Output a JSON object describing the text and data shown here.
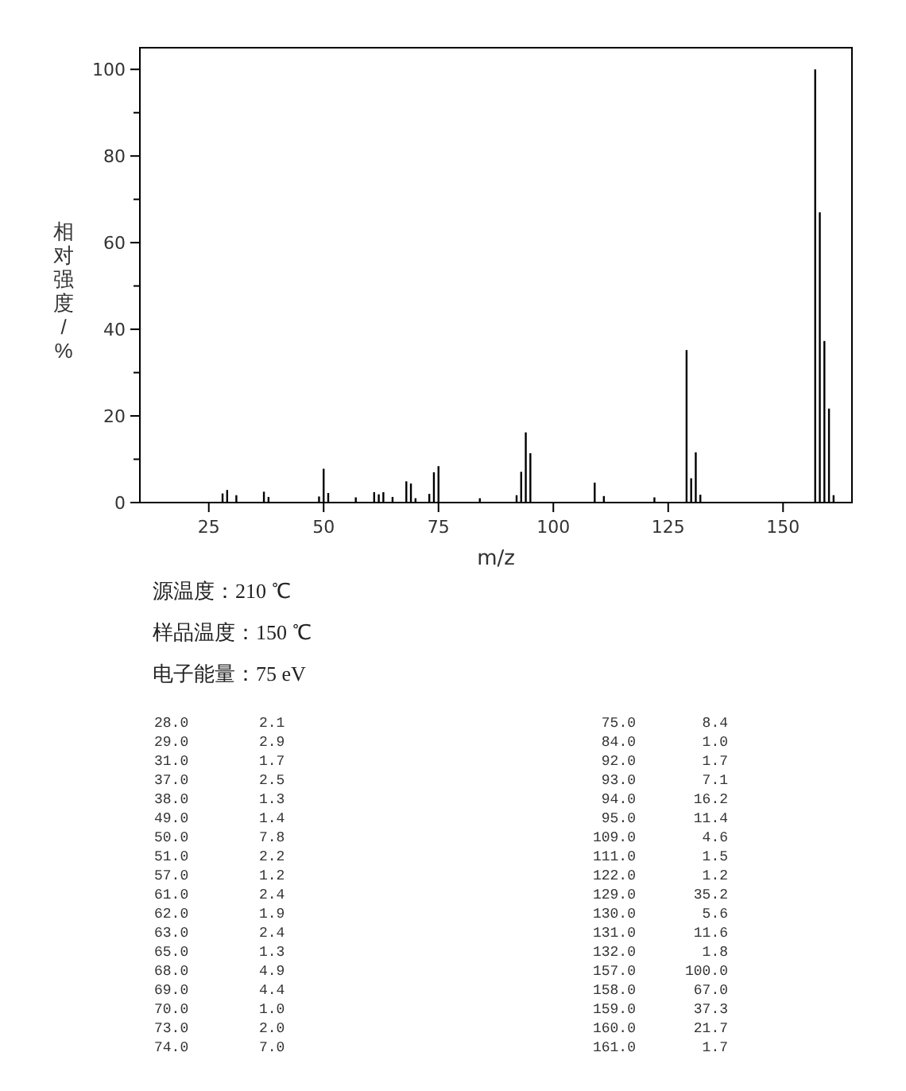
{
  "chart_data": [
    {
      "type": "bar",
      "xlabel": "m/z",
      "ylabel": "相对强度/%",
      "x": [
        28.0,
        29.0,
        31.0,
        37.0,
        38.0,
        49.0,
        50.0,
        51.0,
        57.0,
        61.0,
        62.0,
        63.0,
        65.0,
        68.0,
        69.0,
        70.0,
        73.0,
        74.0,
        75.0,
        84.0,
        92.0,
        93.0,
        94.0,
        95.0,
        109.0,
        111.0,
        122.0,
        129.0,
        130.0,
        131.0,
        132.0,
        157.0,
        158.0,
        159.0,
        160.0,
        161.0
      ],
      "series": [
        {
          "color": "#000000",
          "values": [
            2.1,
            2.9,
            1.7,
            2.5,
            1.3,
            1.4,
            7.8,
            2.2,
            1.2,
            2.4,
            1.9,
            2.4,
            1.3,
            4.9,
            4.4,
            1.0,
            2.0,
            7.0,
            8.4,
            1.0,
            1.7,
            7.1,
            16.2,
            11.4,
            4.6,
            1.5,
            1.2,
            35.2,
            5.6,
            11.6,
            1.8,
            100.0,
            67.0,
            37.3,
            21.7,
            1.7
          ]
        }
      ],
      "xlim": [
        10,
        165
      ],
      "xticks": [
        25,
        50,
        75,
        100,
        125,
        150
      ],
      "ylim": [
        0,
        105
      ],
      "yticks": [
        0,
        {
          "value": 10,
          "label": null
        },
        20,
        {
          "value": 30,
          "label": null
        },
        40,
        {
          "value": 50,
          "label": null
        },
        60,
        {
          "value": 70,
          "label": null
        },
        80,
        {
          "value": 90,
          "label": null
        },
        100
      ],
      "grid": false,
      "annotations": [
        "源温度：210 ℃",
        "样品温度：150 ℃",
        "电子能量：75 eV"
      ]
    },
    {
      "type": "other",
      "categories": [
        "28.0",
        "29.0",
        "31.0",
        "37.0",
        "38.0",
        "49.0",
        "50.0",
        "51.0",
        "57.0",
        "61.0",
        "62.0",
        "63.0",
        "65.0",
        "68.0",
        "69.0",
        "70.0",
        "73.0",
        "74.0",
        "75.0",
        "84.0",
        "92.0",
        "93.0",
        "94.0",
        "95.0",
        "109.0",
        "111.0",
        "122.0",
        "129.0",
        "130.0",
        "131.0",
        "132.0",
        "157.0",
        "158.0",
        "159.0",
        "160.0",
        "161.0"
      ],
      "value_labels": [
        "2.1",
        "2.9",
        "1.7",
        "2.5",
        "1.3",
        "1.4",
        "7.8",
        "2.2",
        "1.2",
        "2.4",
        "1.9",
        "2.4",
        "1.3",
        "4.9",
        "4.4",
        "1.0",
        "2.0",
        "7.0",
        "8.4",
        "1.0",
        "1.7",
        "7.1",
        "16.2",
        "11.4",
        "4.6",
        "1.5",
        "1.2",
        "35.2",
        "5.6",
        "11.6",
        "1.8",
        "100.0",
        "67.0",
        "37.3",
        "21.7",
        "1.7"
      ]
    }
  ]
}
